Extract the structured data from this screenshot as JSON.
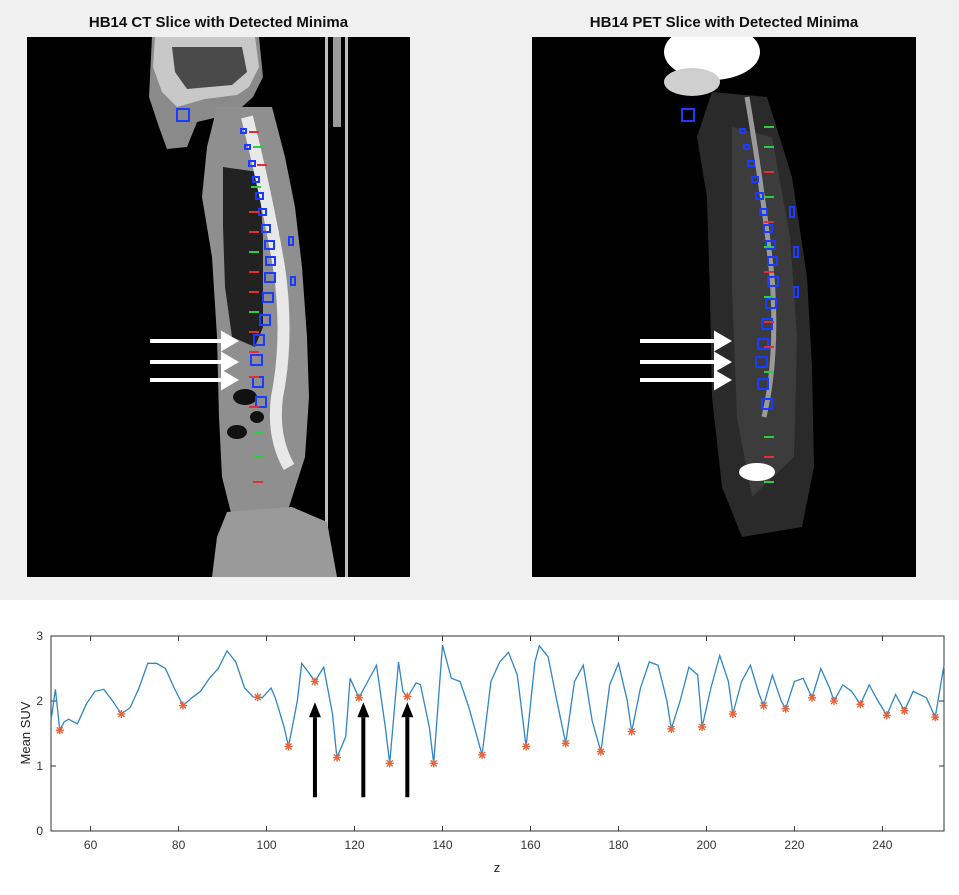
{
  "images": {
    "ct_title": "HB14 CT Slice with Detected Minima",
    "pet_title": "HB14 PET Slice with Detected Minima"
  },
  "colors": {
    "line": "#2f86c6",
    "minima": "#e8643a",
    "roi": "#1a3cff",
    "marker_green": "#2ecc40",
    "marker_red": "#e03030"
  },
  "chart_data": {
    "type": "line",
    "xlabel": "z",
    "ylabel": "Mean SUV",
    "xlim": [
      51,
      254
    ],
    "ylim": [
      0,
      3
    ],
    "xticks": [
      "60",
      "80",
      "100",
      "120",
      "140",
      "160",
      "180",
      "200",
      "220",
      "240"
    ],
    "yticks": [
      "0",
      "1",
      "2",
      "3"
    ],
    "grid": false,
    "series": [
      {
        "values": [
          [
            51,
            1.7
          ],
          [
            52,
            2.18
          ],
          [
            53,
            1.55
          ],
          [
            54,
            1.68
          ],
          [
            55,
            1.72
          ],
          [
            57,
            1.65
          ],
          [
            59,
            1.95
          ],
          [
            61,
            2.15
          ],
          [
            63,
            2.18
          ],
          [
            65,
            2.0
          ],
          [
            67,
            1.8
          ],
          [
            69,
            1.9
          ],
          [
            71,
            2.2
          ],
          [
            73,
            2.58
          ],
          [
            75,
            2.58
          ],
          [
            77,
            2.5
          ],
          [
            79,
            2.2
          ],
          [
            81,
            1.93
          ],
          [
            83,
            2.05
          ],
          [
            85,
            2.15
          ],
          [
            87,
            2.35
          ],
          [
            89,
            2.5
          ],
          [
            91,
            2.77
          ],
          [
            93,
            2.6
          ],
          [
            95,
            2.2
          ],
          [
            97,
            2.06
          ],
          [
            99,
            2.05
          ],
          [
            101,
            2.2
          ],
          [
            102,
            2.05
          ],
          [
            104,
            1.6
          ],
          [
            105,
            1.3
          ],
          [
            107,
            2.0
          ],
          [
            108,
            2.58
          ],
          [
            110,
            2.4
          ],
          [
            111,
            2.3
          ],
          [
            113,
            2.52
          ],
          [
            115,
            1.8
          ],
          [
            116,
            1.13
          ],
          [
            118,
            1.45
          ],
          [
            119,
            2.35
          ],
          [
            121,
            2.05
          ],
          [
            123,
            2.3
          ],
          [
            125,
            2.55
          ],
          [
            127,
            1.6
          ],
          [
            128,
            1.04
          ],
          [
            130,
            2.6
          ],
          [
            131,
            2.15
          ],
          [
            132,
            2.05
          ],
          [
            134,
            2.28
          ],
          [
            135,
            2.25
          ],
          [
            137,
            1.6
          ],
          [
            138,
            1.04
          ],
          [
            140,
            2.86
          ],
          [
            142,
            2.35
          ],
          [
            144,
            2.3
          ],
          [
            146,
            1.9
          ],
          [
            149,
            1.17
          ],
          [
            151,
            2.3
          ],
          [
            153,
            2.6
          ],
          [
            155,
            2.75
          ],
          [
            157,
            2.4
          ],
          [
            159,
            1.3
          ],
          [
            161,
            2.6
          ],
          [
            162,
            2.85
          ],
          [
            164,
            2.68
          ],
          [
            166,
            2.0
          ],
          [
            168,
            1.35
          ],
          [
            170,
            2.3
          ],
          [
            172,
            2.55
          ],
          [
            174,
            1.7
          ],
          [
            176,
            1.22
          ],
          [
            178,
            2.25
          ],
          [
            180,
            2.58
          ],
          [
            182,
            2.0
          ],
          [
            183,
            1.53
          ],
          [
            185,
            2.2
          ],
          [
            187,
            2.6
          ],
          [
            189,
            2.55
          ],
          [
            191,
            2.0
          ],
          [
            192,
            1.57
          ],
          [
            194,
            2.0
          ],
          [
            196,
            2.52
          ],
          [
            198,
            2.4
          ],
          [
            199,
            1.6
          ],
          [
            201,
            2.2
          ],
          [
            203,
            2.7
          ],
          [
            205,
            2.3
          ],
          [
            206,
            1.8
          ],
          [
            208,
            2.3
          ],
          [
            210,
            2.55
          ],
          [
            212,
            2.1
          ],
          [
            213,
            1.93
          ],
          [
            215,
            2.4
          ],
          [
            217,
            2.0
          ],
          [
            218,
            1.88
          ],
          [
            220,
            2.3
          ],
          [
            222,
            2.35
          ],
          [
            224,
            2.05
          ],
          [
            226,
            2.5
          ],
          [
            228,
            2.2
          ],
          [
            229,
            2.0
          ],
          [
            231,
            2.25
          ],
          [
            233,
            2.15
          ],
          [
            235,
            1.95
          ],
          [
            237,
            2.25
          ],
          [
            239,
            2.0
          ],
          [
            241,
            1.78
          ],
          [
            243,
            2.1
          ],
          [
            245,
            1.85
          ],
          [
            247,
            2.15
          ],
          [
            250,
            2.05
          ],
          [
            252,
            1.75
          ],
          [
            254,
            2.55
          ]
        ]
      }
    ],
    "minima": [
      [
        53,
        1.55
      ],
      [
        67,
        1.8
      ],
      [
        81,
        1.93
      ],
      [
        98,
        2.06
      ],
      [
        105,
        1.3
      ],
      [
        111,
        2.3
      ],
      [
        116,
        1.13
      ],
      [
        121,
        2.05
      ],
      [
        128,
        1.04
      ],
      [
        132,
        2.07
      ],
      [
        138,
        1.04
      ],
      [
        149,
        1.17
      ],
      [
        159,
        1.3
      ],
      [
        168,
        1.35
      ],
      [
        176,
        1.22
      ],
      [
        183,
        1.53
      ],
      [
        192,
        1.57
      ],
      [
        199,
        1.6
      ],
      [
        206,
        1.8
      ],
      [
        213,
        1.93
      ],
      [
        218,
        1.88
      ],
      [
        224,
        2.05
      ],
      [
        229,
        2.0
      ],
      [
        235,
        1.95
      ],
      [
        241,
        1.78
      ],
      [
        245,
        1.85
      ],
      [
        252,
        1.75
      ]
    ],
    "annotation_arrows_x": [
      111,
      122,
      132
    ]
  }
}
